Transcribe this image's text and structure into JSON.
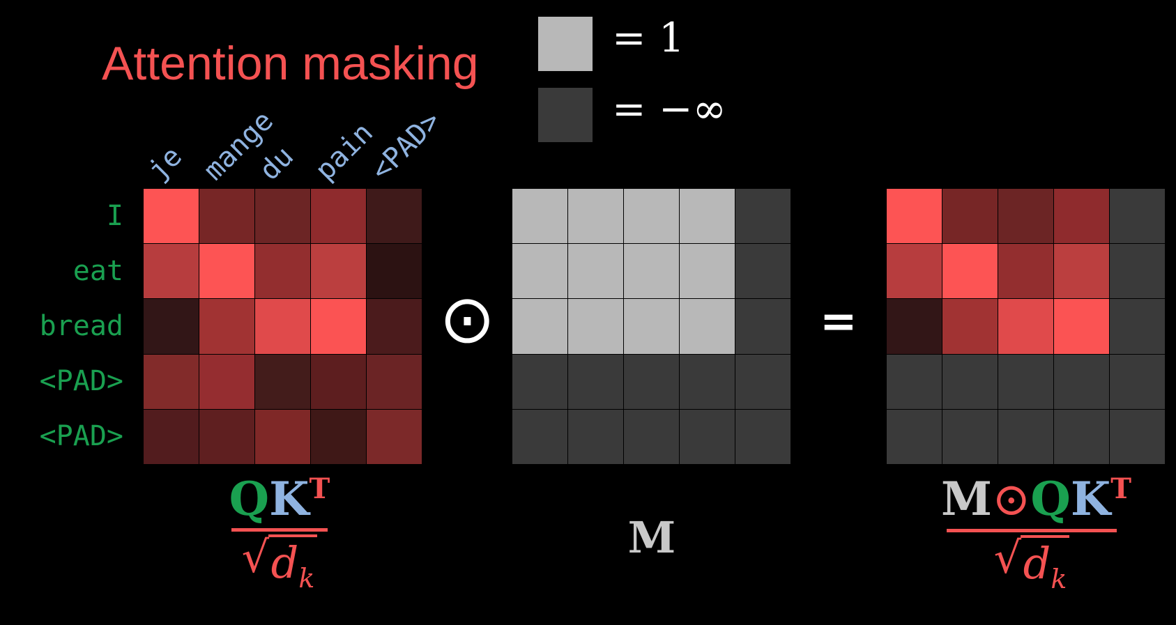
{
  "title": "Attention masking",
  "legend": [
    {
      "color": "#b8b8b8",
      "text": "= 1"
    },
    {
      "color": "#3a3a3a",
      "text": "= −∞"
    }
  ],
  "columns": [
    "je",
    "mange",
    "du",
    "pain",
    "<PAD>"
  ],
  "rows": [
    "I",
    "eat",
    "bread",
    "<PAD>",
    "<PAD>"
  ],
  "colors": {
    "title": "#f45252",
    "column_label": "#8fb3e0",
    "row_label": "#1aa050",
    "mask_one": "#b8b8b8",
    "mask_neg_inf": "#3a3a3a"
  },
  "qk_matrix": [
    [
      "#fd5454",
      "#772626",
      "#6c2525",
      "#8f2b2d",
      "#3f1a1a"
    ],
    [
      "#b73d3e",
      "#fd5454",
      "#932e2f",
      "#bb3f3f",
      "#2c1212"
    ],
    [
      "#321617",
      "#a13333",
      "#e04a4b",
      "#fb5353",
      "#4b1b1c"
    ],
    [
      "#822b2a",
      "#952d30",
      "#431c1b",
      "#5d1e1f",
      "#6b2425"
    ],
    [
      "#521c1e",
      "#5f1f20",
      "#7f2827",
      "#3f1817",
      "#7c2929"
    ]
  ],
  "mask_matrix": [
    [
      1,
      1,
      1,
      1,
      0
    ],
    [
      1,
      1,
      1,
      1,
      0
    ],
    [
      1,
      1,
      1,
      1,
      0
    ],
    [
      0,
      0,
      0,
      0,
      0
    ],
    [
      0,
      0,
      0,
      0,
      0
    ]
  ],
  "operators": {
    "hadamard": "⊙",
    "equals": "="
  },
  "labels": {
    "qk_num_q": "Q",
    "qk_num_k": "K",
    "qk_num_t": "T",
    "den_d": "d",
    "den_k": "k",
    "mask": "M",
    "result_m": "M",
    "result_op": "⊙"
  }
}
